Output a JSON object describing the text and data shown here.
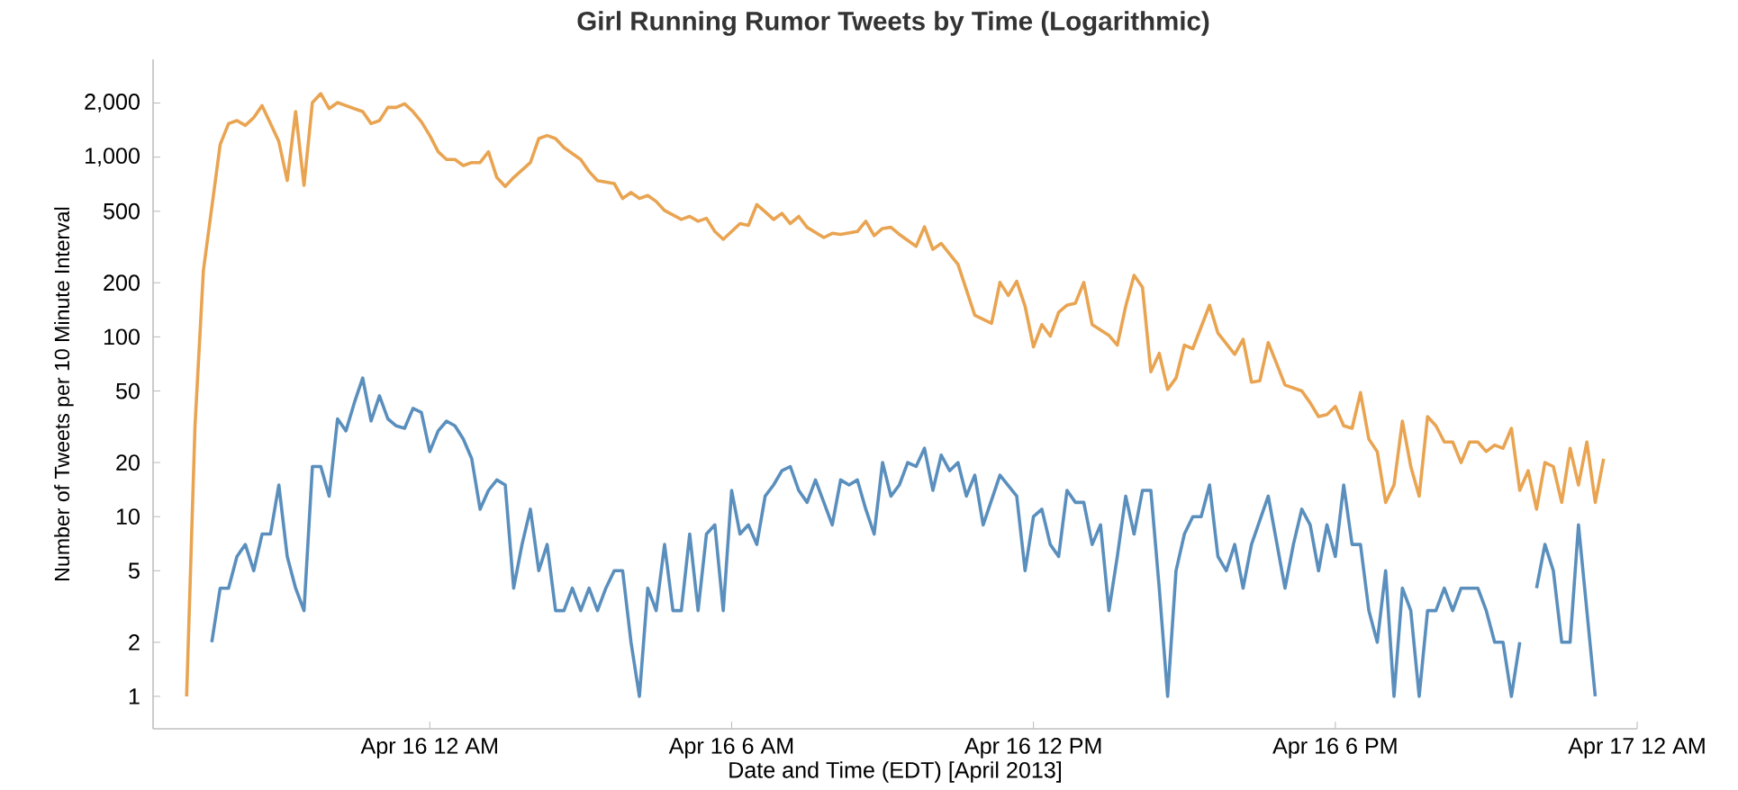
{
  "chart_data": {
    "type": "line",
    "title": "Girl Running Rumor Tweets by Time (Logarithmic)",
    "xlabel": "Date and Time (EDT) [April 2013]",
    "ylabel": "Number of Tweets per 10 Minute Interval",
    "log": true,
    "ylim": [
      0.66,
      3500
    ],
    "yticks": [
      1,
      2,
      5,
      10,
      20,
      50,
      100,
      200,
      500,
      {
        "value": 1000,
        "label": "1,000"
      },
      {
        "value": 2000,
        "label": "2,000"
      }
    ],
    "xlim": [
      "2013-04-15T18:30",
      "2013-04-17T00:00"
    ],
    "xticks": [
      {
        "value": "2013-04-16T00:00",
        "label": "Apr 16 12 AM"
      },
      {
        "value": "2013-04-16T06:00",
        "label": "Apr 16 6 AM"
      },
      {
        "value": "2013-04-16T12:00",
        "label": "Apr 16 12 PM"
      },
      {
        "value": "2013-04-16T18:00",
        "label": "Apr 16 6 PM"
      },
      {
        "value": "2013-04-17T00:00",
        "label": "Apr 17 12 AM"
      }
    ],
    "series": [
      {
        "color": "#e9a451",
        "x": [
          "2013-04-15T19:10",
          "2013-04-15T19:20",
          "2013-04-15T19:30",
          "2013-04-15T19:50",
          "2013-04-15T20:00",
          "2013-04-15T20:10",
          "2013-04-15T20:20",
          "2013-04-15T20:30",
          "2013-04-15T20:40",
          "2013-04-15T20:50",
          "2013-04-15T21:00",
          "2013-04-15T21:10",
          "2013-04-15T21:20",
          "2013-04-15T21:30",
          "2013-04-15T21:40",
          "2013-04-15T21:50",
          "2013-04-15T22:00",
          "2013-04-15T22:10",
          "2013-04-15T22:20",
          "2013-04-15T22:30",
          "2013-04-15T22:40",
          "2013-04-15T22:50",
          "2013-04-15T23:00",
          "2013-04-15T23:10",
          "2013-04-15T23:20",
          "2013-04-15T23:30",
          "2013-04-15T23:40",
          "2013-04-15T23:50",
          "2013-04-16T00:00",
          "2013-04-16T00:10",
          "2013-04-16T00:20",
          "2013-04-16T00:30",
          "2013-04-16T00:40",
          "2013-04-16T00:50",
          "2013-04-16T01:00",
          "2013-04-16T01:10",
          "2013-04-16T01:20",
          "2013-04-16T01:30",
          "2013-04-16T01:40",
          "2013-04-16T02:00",
          "2013-04-16T02:10",
          "2013-04-16T02:20",
          "2013-04-16T02:30",
          "2013-04-16T02:40",
          "2013-04-16T03:00",
          "2013-04-16T03:10",
          "2013-04-16T03:20",
          "2013-04-16T03:40",
          "2013-04-16T03:50",
          "2013-04-16T04:00",
          "2013-04-16T04:10",
          "2013-04-16T04:20",
          "2013-04-16T04:30",
          "2013-04-16T04:40",
          "2013-04-16T05:00",
          "2013-04-16T05:10",
          "2013-04-16T05:20",
          "2013-04-16T05:30",
          "2013-04-16T05:40",
          "2013-04-16T05:50",
          "2013-04-16T06:00",
          "2013-04-16T06:10",
          "2013-04-16T06:20",
          "2013-04-16T06:30",
          "2013-04-16T06:40",
          "2013-04-16T06:50",
          "2013-04-16T07:00",
          "2013-04-16T07:10",
          "2013-04-16T07:20",
          "2013-04-16T07:30",
          "2013-04-16T07:50",
          "2013-04-16T08:00",
          "2013-04-16T08:10",
          "2013-04-16T08:30",
          "2013-04-16T08:40",
          "2013-04-16T08:50",
          "2013-04-16T09:00",
          "2013-04-16T09:10",
          "2013-04-16T09:20",
          "2013-04-16T09:40",
          "2013-04-16T09:50",
          "2013-04-16T10:00",
          "2013-04-16T10:10",
          "2013-04-16T10:30",
          "2013-04-16T10:50",
          "2013-04-16T11:10",
          "2013-04-16T11:20",
          "2013-04-16T11:30",
          "2013-04-16T11:40",
          "2013-04-16T11:50",
          "2013-04-16T12:00",
          "2013-04-16T12:10",
          "2013-04-16T12:20",
          "2013-04-16T12:30",
          "2013-04-16T12:40",
          "2013-04-16T12:50",
          "2013-04-16T13:00",
          "2013-04-16T13:10",
          "2013-04-16T13:30",
          "2013-04-16T13:40",
          "2013-04-16T13:50",
          "2013-04-16T14:00",
          "2013-04-16T14:10",
          "2013-04-16T14:20",
          "2013-04-16T14:30",
          "2013-04-16T14:40",
          "2013-04-16T14:50",
          "2013-04-16T15:00",
          "2013-04-16T15:10",
          "2013-04-16T15:30",
          "2013-04-16T15:40",
          "2013-04-16T16:00",
          "2013-04-16T16:10",
          "2013-04-16T16:20",
          "2013-04-16T16:30",
          "2013-04-16T16:40",
          "2013-04-16T16:50",
          "2013-04-16T17:00",
          "2013-04-16T17:20",
          "2013-04-16T17:30",
          "2013-04-16T17:40",
          "2013-04-16T17:50",
          "2013-04-16T18:00",
          "2013-04-16T18:10",
          "2013-04-16T18:20",
          "2013-04-16T18:30",
          "2013-04-16T18:40",
          "2013-04-16T18:50",
          "2013-04-16T19:00",
          "2013-04-16T19:10",
          "2013-04-16T19:20",
          "2013-04-16T19:30",
          "2013-04-16T19:40",
          "2013-04-16T19:50",
          "2013-04-16T20:00",
          "2013-04-16T20:10",
          "2013-04-16T20:20",
          "2013-04-16T20:30",
          "2013-04-16T20:40",
          "2013-04-16T20:50",
          "2013-04-16T21:00",
          "2013-04-16T21:10",
          "2013-04-16T21:20",
          "2013-04-16T21:30",
          "2013-04-16T21:40",
          "2013-04-16T21:50",
          "2013-04-16T22:00",
          "2013-04-16T22:10",
          "2013-04-16T22:20",
          "2013-04-16T22:30",
          "2013-04-16T22:40",
          "2013-04-16T22:50",
          "2013-04-16T23:00",
          "2013-04-16T23:10",
          "2013-04-16T23:20"
        ],
        "values": [
          1,
          32,
          234,
          1175,
          1537,
          1597,
          1502,
          1660,
          1935,
          1537,
          1221,
          741,
          1792,
          697,
          2012,
          2256,
          1862,
          2012,
          1935,
          1862,
          1792,
          1537,
          1597,
          1891,
          1891,
          1980,
          1792,
          1573,
          1318,
          1072,
          970,
          970,
          898,
          933,
          933,
          1072,
          770,
          687,
          770,
          933,
          1268,
          1318,
          1268,
          1130,
          970,
          832,
          741,
          713,
          589,
          636,
          589,
          612,
          567,
          505,
          450,
          468,
          440,
          457,
          386,
          349,
          386,
          427,
          417,
          545,
          497,
          450,
          486,
          427,
          468,
          407,
          357,
          377,
          372,
          386,
          440,
          366,
          401,
          407,
          372,
          319,
          410,
          307,
          331,
          253,
          132,
          119,
          201,
          170,
          204,
          148,
          88,
          117,
          101,
          137,
          150,
          154,
          201,
          117,
          102,
          90,
          148,
          220,
          189,
          64,
          81,
          51,
          59,
          90,
          86,
          150,
          105,
          80,
          97,
          56,
          57,
          93,
          71,
          54,
          50,
          43,
          36,
          37,
          41,
          32,
          31,
          49,
          27,
          23,
          12,
          15,
          34,
          19,
          13,
          36,
          32,
          26,
          26,
          20,
          26,
          26,
          23,
          25,
          24,
          31,
          14,
          18,
          11,
          20,
          19,
          12,
          24,
          15,
          26,
          12,
          21
        ]
      },
      {
        "color": "#5a8fbd",
        "x": [
          "2013-04-15T19:40",
          "2013-04-15T19:50",
          "2013-04-15T20:00",
          "2013-04-15T20:10",
          "2013-04-15T20:20",
          "2013-04-15T20:30",
          "2013-04-15T20:40",
          "2013-04-15T20:50",
          "2013-04-15T21:00",
          "2013-04-15T21:10",
          "2013-04-15T21:20",
          "2013-04-15T21:30",
          "2013-04-15T21:40",
          "2013-04-15T21:50",
          "2013-04-15T22:00",
          "2013-04-15T22:10",
          "2013-04-15T22:20",
          "2013-04-15T22:30",
          "2013-04-15T22:40",
          "2013-04-15T22:50",
          "2013-04-15T23:00",
          "2013-04-15T23:10",
          "2013-04-15T23:20",
          "2013-04-15T23:30",
          "2013-04-15T23:40",
          "2013-04-15T23:50",
          "2013-04-16T00:00",
          "2013-04-16T00:10",
          "2013-04-16T00:20",
          "2013-04-16T00:30",
          "2013-04-16T00:40",
          "2013-04-16T00:50",
          "2013-04-16T01:00",
          "2013-04-16T01:10",
          "2013-04-16T01:20",
          "2013-04-16T01:30",
          "2013-04-16T01:40",
          "2013-04-16T01:50",
          "2013-04-16T02:00",
          "2013-04-16T02:10",
          "2013-04-16T02:20",
          "2013-04-16T02:30",
          "2013-04-16T02:40",
          "2013-04-16T02:50",
          "2013-04-16T03:00",
          "2013-04-16T03:10",
          "2013-04-16T03:20",
          "2013-04-16T03:30",
          "2013-04-16T03:40",
          "2013-04-16T03:50",
          "2013-04-16T04:00",
          "2013-04-16T04:10",
          "2013-04-16T04:20",
          "2013-04-16T04:30",
          "2013-04-16T04:40",
          "2013-04-16T04:50",
          "2013-04-16T05:00",
          "2013-04-16T05:10",
          "2013-04-16T05:20",
          "2013-04-16T05:30",
          "2013-04-16T05:40",
          "2013-04-16T05:50",
          "2013-04-16T06:00",
          "2013-04-16T06:10",
          "2013-04-16T06:20",
          "2013-04-16T06:30",
          "2013-04-16T06:40",
          "2013-04-16T06:50",
          "2013-04-16T07:00",
          "2013-04-16T07:10",
          "2013-04-16T07:20",
          "2013-04-16T07:30",
          "2013-04-16T07:40",
          "2013-04-16T08:00",
          "2013-04-16T08:10",
          "2013-04-16T08:20",
          "2013-04-16T08:30",
          "2013-04-16T08:40",
          "2013-04-16T08:50",
          "2013-04-16T09:00",
          "2013-04-16T09:10",
          "2013-04-16T09:20",
          "2013-04-16T09:30",
          "2013-04-16T09:40",
          "2013-04-16T09:50",
          "2013-04-16T10:00",
          "2013-04-16T10:10",
          "2013-04-16T10:20",
          "2013-04-16T10:30",
          "2013-04-16T10:40",
          "2013-04-16T10:50",
          "2013-04-16T11:00",
          "2013-04-16T11:20",
          "2013-04-16T11:40",
          "2013-04-16T11:50",
          "2013-04-16T12:00",
          "2013-04-16T12:10",
          "2013-04-16T12:20",
          "2013-04-16T12:30",
          "2013-04-16T12:40",
          "2013-04-16T12:50",
          "2013-04-16T13:00",
          "2013-04-16T13:10",
          "2013-04-16T13:20",
          "2013-04-16T13:30",
          "2013-04-16T13:40",
          "2013-04-16T13:50",
          "2013-04-16T14:00",
          "2013-04-16T14:10",
          "2013-04-16T14:20",
          "2013-04-16T14:30",
          "2013-04-16T14:40",
          "2013-04-16T14:50",
          "2013-04-16T15:00",
          "2013-04-16T15:10",
          "2013-04-16T15:20",
          "2013-04-16T15:30",
          "2013-04-16T15:40",
          "2013-04-16T15:50",
          "2013-04-16T16:00",
          "2013-04-16T16:10",
          "2013-04-16T16:20",
          "2013-04-16T16:40",
          "2013-04-16T17:00",
          "2013-04-16T17:10",
          "2013-04-16T17:20",
          "2013-04-16T17:30",
          "2013-04-16T17:40",
          "2013-04-16T17:50",
          "2013-04-16T18:00",
          "2013-04-16T18:10",
          "2013-04-16T18:20",
          "2013-04-16T18:30",
          "2013-04-16T18:40",
          "2013-04-16T18:50",
          "2013-04-16T19:00",
          "2013-04-16T19:10",
          "2013-04-16T19:20",
          "2013-04-16T19:30",
          "2013-04-16T19:40",
          "2013-04-16T19:50",
          "2013-04-16T20:00",
          "2013-04-16T20:10",
          "2013-04-16T20:20",
          "2013-04-16T20:30",
          "2013-04-16T20:40",
          "2013-04-16T20:50",
          "2013-04-16T21:00",
          "2013-04-16T21:10",
          "2013-04-16T21:20",
          "2013-04-16T21:30",
          "2013-04-16T21:40",
          "2013-04-16T21:50",
          "2013-04-16T22:00",
          "2013-04-16T22:10",
          "2013-04-16T22:20",
          "2013-04-16T22:30",
          "2013-04-16T22:40",
          "2013-04-16T22:50",
          "2013-04-16T23:10"
        ],
        "values": [
          2,
          4,
          4,
          6,
          7,
          5,
          8,
          8,
          15,
          6,
          4,
          3,
          19,
          19,
          13,
          35,
          30,
          43,
          59,
          34,
          47,
          35,
          32,
          31,
          40,
          38,
          23,
          30,
          34,
          32,
          27,
          21,
          11,
          14,
          16,
          15,
          4,
          7,
          11,
          5,
          7,
          3,
          3,
          4,
          3,
          4,
          3,
          4,
          5,
          5,
          2,
          1,
          4,
          3,
          7,
          3,
          3,
          8,
          3,
          8,
          9,
          3,
          14,
          8,
          9,
          7,
          13,
          15,
          18,
          19,
          14,
          12,
          16,
          9,
          16,
          15,
          16,
          11,
          8,
          20,
          13,
          15,
          20,
          19,
          24,
          14,
          22,
          18,
          20,
          13,
          17,
          9,
          17,
          13,
          5,
          10,
          11,
          7,
          6,
          14,
          12,
          12,
          7,
          9,
          3,
          6,
          13,
          8,
          14,
          14,
          4,
          1,
          5,
          8,
          10,
          10,
          15,
          6,
          5,
          7,
          4,
          7,
          13,
          4,
          7,
          11,
          9,
          5,
          9,
          6,
          15,
          7,
          7,
          3,
          2,
          5,
          1,
          4,
          3,
          1,
          3,
          3,
          4,
          3,
          4,
          4,
          4,
          3,
          2,
          2,
          1,
          2,
          null,
          4,
          7,
          5,
          2,
          2,
          9,
          1
        ]
      }
    ]
  }
}
